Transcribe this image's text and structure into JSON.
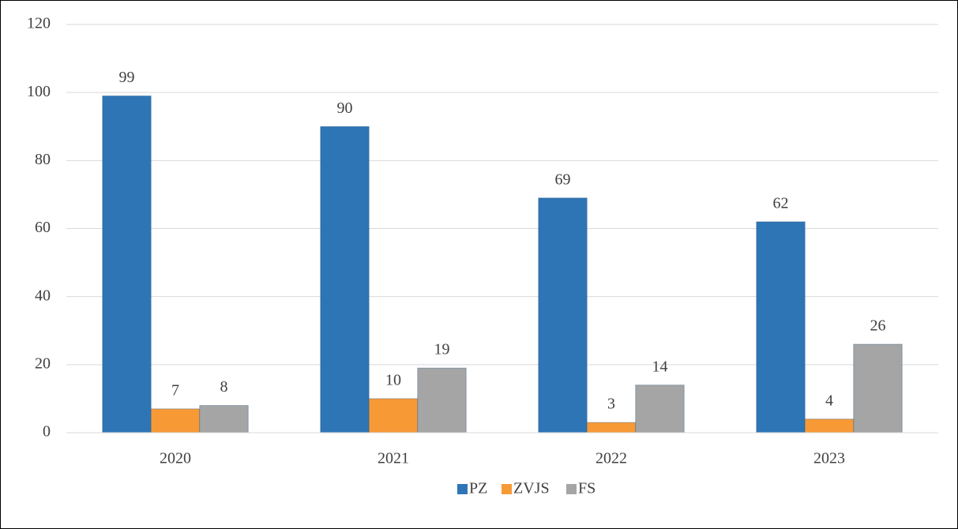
{
  "chart_data": {
    "type": "bar",
    "categories": [
      "2020",
      "2021",
      "2022",
      "2023"
    ],
    "series": [
      {
        "name": "PZ",
        "color": "#2e75b6",
        "values": [
          99,
          90,
          69,
          62
        ]
      },
      {
        "name": "ZVJS",
        "color": "#f79a36",
        "values": [
          7,
          10,
          3,
          4
        ]
      },
      {
        "name": "FS",
        "color": "#a5a5a5",
        "values": [
          8,
          19,
          14,
          26
        ]
      }
    ],
    "ylim": [
      0,
      120
    ],
    "yticks": [
      0,
      20,
      40,
      60,
      80,
      100,
      120
    ],
    "grid": true,
    "legend": "bottom"
  }
}
